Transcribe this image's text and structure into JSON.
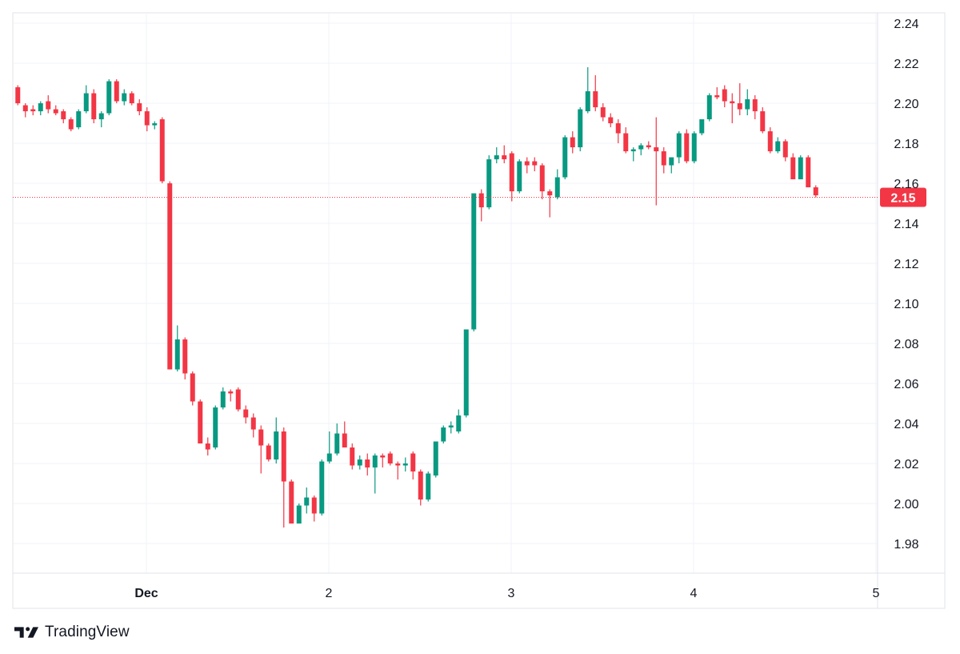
{
  "brand": {
    "name": "TradingView",
    "logo_icon": "tradingview-logo-icon"
  },
  "colors": {
    "up": "#089981",
    "down": "#f23645",
    "grid": "#f0f3fa",
    "axis_text": "#131722",
    "last_price_line": "#f23645"
  },
  "chart_data": {
    "type": "candlestick",
    "y_axis": {
      "ticks": [
        1.98,
        2.0,
        2.02,
        2.04,
        2.06,
        2.08,
        2.1,
        2.12,
        2.14,
        2.16,
        2.18,
        2.2,
        2.22,
        2.24
      ],
      "ylim": [
        1.965,
        2.245
      ],
      "position": "right"
    },
    "x_axis": {
      "ticks": [
        {
          "label": "Dec",
          "t": 1.0
        },
        {
          "label": "2",
          "t": 2.0
        },
        {
          "label": "3",
          "t": 3.0
        },
        {
          "label": "4",
          "t": 4.0
        },
        {
          "label": "5",
          "t": 5.0
        }
      ],
      "xlim": [
        0.28,
        5.0
      ]
    },
    "grid": true,
    "last_price": {
      "value": 2.153,
      "label": "2.15"
    },
    "candles_per_day": 24,
    "start_t": 0.295,
    "candles": [
      [
        2.208,
        2.209,
        2.199,
        2.2
      ],
      [
        2.199,
        2.2,
        2.193,
        2.196
      ],
      [
        2.197,
        2.199,
        2.194,
        2.196
      ],
      [
        2.196,
        2.201,
        2.194,
        2.2
      ],
      [
        2.201,
        2.204,
        2.195,
        2.197
      ],
      [
        2.197,
        2.199,
        2.194,
        2.195
      ],
      [
        2.196,
        2.197,
        2.19,
        2.192
      ],
      [
        2.192,
        2.193,
        2.186,
        2.187
      ],
      [
        2.188,
        2.197,
        2.187,
        2.196
      ],
      [
        2.196,
        2.209,
        2.195,
        2.205
      ],
      [
        2.205,
        2.207,
        2.19,
        2.192
      ],
      [
        2.192,
        2.196,
        2.188,
        2.195
      ],
      [
        2.195,
        2.212,
        2.194,
        2.211
      ],
      [
        2.211,
        2.212,
        2.2,
        2.201
      ],
      [
        2.201,
        2.207,
        2.199,
        2.205
      ],
      [
        2.205,
        2.206,
        2.199,
        2.2
      ],
      [
        2.2,
        2.202,
        2.194,
        2.196
      ],
      [
        2.196,
        2.198,
        2.186,
        2.189
      ],
      [
        2.189,
        2.191,
        2.187,
        2.19
      ],
      [
        2.192,
        2.193,
        2.16,
        2.161
      ],
      [
        2.16,
        2.161,
        2.067,
        2.067
      ],
      [
        2.067,
        2.089,
        2.066,
        2.082
      ],
      [
        2.082,
        2.083,
        2.062,
        2.065
      ],
      [
        2.065,
        2.066,
        2.049,
        2.051
      ],
      [
        2.051,
        2.052,
        2.03,
        2.03
      ],
      [
        2.03,
        2.033,
        2.024,
        2.027
      ],
      [
        2.028,
        2.049,
        2.027,
        2.048
      ],
      [
        2.048,
        2.058,
        2.047,
        2.056
      ],
      [
        2.056,
        2.057,
        2.051,
        2.055
      ],
      [
        2.057,
        2.058,
        2.046,
        2.047
      ],
      [
        2.047,
        2.049,
        2.04,
        2.043
      ],
      [
        2.043,
        2.045,
        2.033,
        2.037
      ],
      [
        2.037,
        2.039,
        2.015,
        2.029
      ],
      [
        2.029,
        2.03,
        2.021,
        2.022
      ],
      [
        2.022,
        2.043,
        2.02,
        2.036
      ],
      [
        2.036,
        2.038,
        1.988,
        2.011
      ],
      [
        2.011,
        2.012,
        1.99,
        1.99
      ],
      [
        1.99,
        2.0,
        1.99,
        1.999
      ],
      [
        1.999,
        2.008,
        1.995,
        2.003
      ],
      [
        2.003,
        2.004,
        1.991,
        1.995
      ],
      [
        1.995,
        2.022,
        1.994,
        2.021
      ],
      [
        2.021,
        2.036,
        2.02,
        2.025
      ],
      [
        2.025,
        2.04,
        2.024,
        2.035
      ],
      [
        2.035,
        2.041,
        2.028,
        2.028
      ],
      [
        2.028,
        2.03,
        2.017,
        2.019
      ],
      [
        2.019,
        2.024,
        2.017,
        2.022
      ],
      [
        2.022,
        2.025,
        2.014,
        2.018
      ],
      [
        2.018,
        2.025,
        2.005,
        2.024
      ],
      [
        2.024,
        2.025,
        2.018,
        2.023
      ],
      [
        2.025,
        2.026,
        2.019,
        2.02
      ],
      [
        2.02,
        2.021,
        2.012,
        2.019
      ],
      [
        2.019,
        2.023,
        2.016,
        2.02
      ],
      [
        2.025,
        2.026,
        2.012,
        2.016
      ],
      [
        2.016,
        2.017,
        1.999,
        2.002
      ],
      [
        2.002,
        2.016,
        2.001,
        2.015
      ],
      [
        2.014,
        2.031,
        2.013,
        2.031
      ],
      [
        2.031,
        2.039,
        2.03,
        2.038
      ],
      [
        2.038,
        2.041,
        2.035,
        2.039
      ],
      [
        2.036,
        2.047,
        2.035,
        2.044
      ],
      [
        2.044,
        2.087,
        2.043,
        2.087
      ],
      [
        2.087,
        2.155,
        2.086,
        2.155
      ],
      [
        2.155,
        2.157,
        2.141,
        2.148
      ],
      [
        2.148,
        2.174,
        2.147,
        2.172
      ],
      [
        2.172,
        2.178,
        2.17,
        2.174
      ],
      [
        2.174,
        2.179,
        2.17,
        2.172
      ],
      [
        2.175,
        2.176,
        2.151,
        2.156
      ],
      [
        2.156,
        2.172,
        2.155,
        2.171
      ],
      [
        2.171,
        2.173,
        2.165,
        2.169
      ],
      [
        2.171,
        2.173,
        2.166,
        2.169
      ],
      [
        2.169,
        2.17,
        2.152,
        2.156
      ],
      [
        2.156,
        2.157,
        2.143,
        2.154
      ],
      [
        2.153,
        2.167,
        2.152,
        2.163
      ],
      [
        2.163,
        2.184,
        2.162,
        2.183
      ],
      [
        2.183,
        2.186,
        2.175,
        2.178
      ],
      [
        2.178,
        2.198,
        2.176,
        2.197
      ],
      [
        2.196,
        2.218,
        2.195,
        2.206
      ],
      [
        2.206,
        2.214,
        2.196,
        2.198
      ],
      [
        2.198,
        2.2,
        2.191,
        2.193
      ],
      [
        2.193,
        2.195,
        2.188,
        2.19
      ],
      [
        2.19,
        2.192,
        2.18,
        2.185
      ],
      [
        2.185,
        2.188,
        2.175,
        2.176
      ],
      [
        2.176,
        2.178,
        2.171,
        2.177
      ],
      [
        2.177,
        2.18,
        2.174,
        2.179
      ],
      [
        2.179,
        2.181,
        2.177,
        2.178
      ],
      [
        2.178,
        2.193,
        2.149,
        2.176
      ],
      [
        2.176,
        2.178,
        2.165,
        2.169
      ],
      [
        2.169,
        2.173,
        2.165,
        2.173
      ],
      [
        2.173,
        2.186,
        2.17,
        2.185
      ],
      [
        2.185,
        2.187,
        2.17,
        2.171
      ],
      [
        2.171,
        2.186,
        2.17,
        2.185
      ],
      [
        2.185,
        2.192,
        2.184,
        2.192
      ],
      [
        2.192,
        2.205,
        2.191,
        2.204
      ],
      [
        2.204,
        2.208,
        2.202,
        2.203
      ],
      [
        2.207,
        2.209,
        2.198,
        2.201
      ],
      [
        2.201,
        2.205,
        2.19,
        2.2
      ],
      [
        2.2,
        2.21,
        2.194,
        2.197
      ],
      [
        2.197,
        2.207,
        2.194,
        2.202
      ],
      [
        2.202,
        2.204,
        2.192,
        2.196
      ],
      [
        2.196,
        2.198,
        2.185,
        2.186
      ],
      [
        2.186,
        2.188,
        2.175,
        2.176
      ],
      [
        2.176,
        2.183,
        2.175,
        2.181
      ],
      [
        2.181,
        2.182,
        2.171,
        2.173
      ],
      [
        2.173,
        2.175,
        2.162,
        2.162
      ],
      [
        2.162,
        2.174,
        2.162,
        2.173
      ],
      [
        2.173,
        2.174,
        2.158,
        2.158
      ],
      [
        2.158,
        2.159,
        2.153,
        2.154
      ]
    ]
  }
}
